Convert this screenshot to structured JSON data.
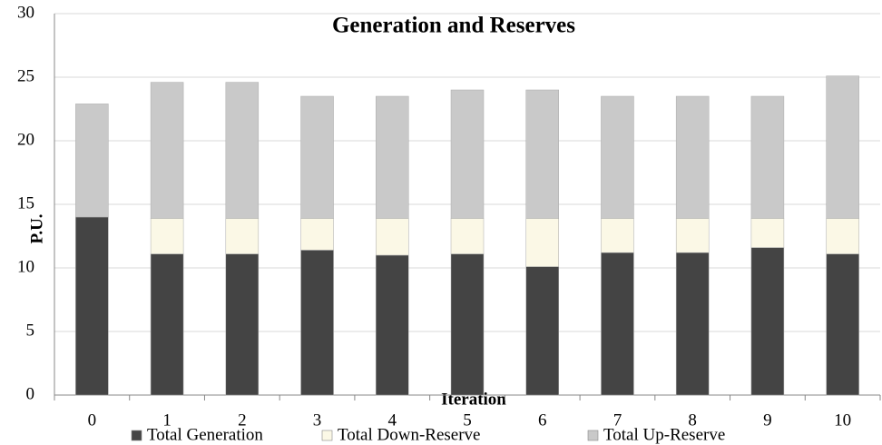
{
  "chart_data": {
    "type": "stacked_bar",
    "title": "Generation and Reserves",
    "x_label": "Iteration",
    "y_label": "P.U.",
    "categories": [
      "0",
      "1",
      "2",
      "3",
      "4",
      "5",
      "6",
      "7",
      "8",
      "9",
      "10"
    ],
    "series": [
      {
        "name": "Total Generation",
        "color": "#444444",
        "values": [
          14,
          11.1,
          11.1,
          11.4,
          11,
          11.1,
          10.1,
          11.2,
          11.2,
          11.6,
          11.1
        ]
      },
      {
        "name": "Total Down-Reserve",
        "color": "#fbf8e6",
        "values": [
          0,
          2.8,
          2.8,
          2.5,
          2.9,
          2.8,
          3.8,
          2.7,
          2.7,
          2.3,
          2.8
        ]
      },
      {
        "name": "Total Up-Reserve",
        "color": "#c9c9c9",
        "values": [
          8.9,
          10.7,
          10.7,
          9.6,
          9.6,
          10.1,
          10.1,
          9.6,
          9.6,
          9.6,
          11.2
        ]
      }
    ],
    "ylim": [
      0,
      30
    ],
    "yticks": [
      0,
      5,
      10,
      15,
      20,
      25,
      30
    ],
    "grid": true,
    "legend": "bottom"
  }
}
